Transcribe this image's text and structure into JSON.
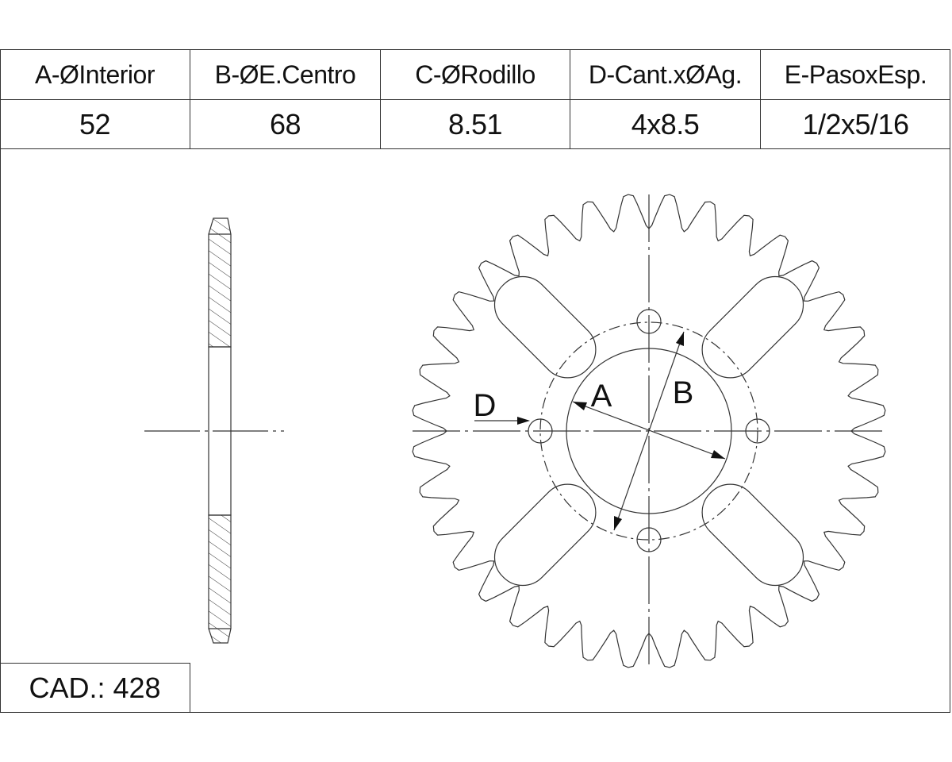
{
  "table": {
    "headers": [
      "A-ØInterior",
      "B-ØE.Centro",
      "C-ØRodillo",
      "D-Cant.xØAg.",
      "E-PasoxEsp."
    ],
    "values": [
      "52",
      "68",
      "8.51",
      "4x8.5",
      "1/2x5/16"
    ]
  },
  "cadena": "CAD.: 428",
  "drawing": {
    "label_a": "A",
    "label_b": "B",
    "label_d": "D",
    "teeth": 36,
    "bolt_holes": 4,
    "lightening_slots": 4
  },
  "colors": {
    "line": "#333333",
    "text": "#111111"
  }
}
